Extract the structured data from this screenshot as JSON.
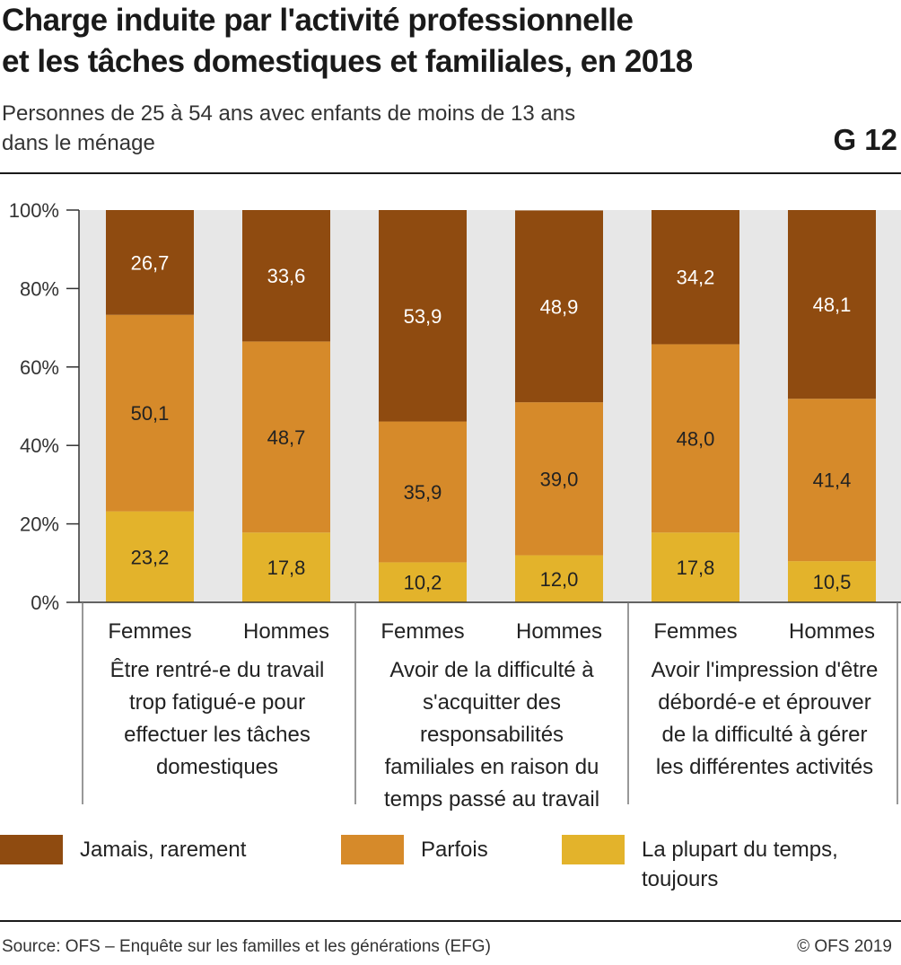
{
  "header": {
    "title_line1": "Charge induite par l'activité professionnelle",
    "title_line2": "et les tâches domestiques et familiales, en 2018",
    "subtitle_line1": "Personnes de 25 à 54 ans avec enfants de moins de 13 ans",
    "subtitle_line2": "dans le ménage",
    "figure_code": "G 12"
  },
  "chart_data": {
    "type": "bar",
    "stacked": true,
    "ylim": [
      0,
      100
    ],
    "yticks": [
      "0%",
      "20%",
      "40%",
      "60%",
      "80%",
      "100%"
    ],
    "grid": false,
    "legend_position": "bottom",
    "bars": [
      "Femmes",
      "Hommes",
      "Femmes",
      "Hommes",
      "Femmes",
      "Hommes"
    ],
    "groups": [
      {
        "lines": [
          "Être rentré-e du travail",
          "trop fatigué-e pour",
          "effectuer les tâches",
          "domestiques"
        ]
      },
      {
        "lines": [
          "Avoir de la difficulté à",
          "s'acquitter des",
          "responsabilités",
          "familiales en raison du",
          "temps passé au travail"
        ]
      },
      {
        "lines": [
          "Avoir l'impression d'être",
          "débordé-e et éprouver",
          "de la difficulté à gérer",
          "les différentes activités"
        ]
      }
    ],
    "series": [
      {
        "name_lines": [
          "La plupart du temps,",
          "toujours"
        ],
        "color": "#e3b32b",
        "values": [
          23.2,
          17.8,
          10.2,
          12.0,
          17.8,
          10.5
        ],
        "labels": [
          "23,2",
          "17,8",
          "10,2",
          "12,0",
          "17,8",
          "10,5"
        ]
      },
      {
        "name_lines": [
          "Parfois"
        ],
        "color": "#d68a2a",
        "values": [
          50.1,
          48.7,
          35.9,
          39.0,
          48.0,
          41.4
        ],
        "labels": [
          "50,1",
          "48,7",
          "35,9",
          "39,0",
          "48,0",
          "41,4"
        ]
      },
      {
        "name_lines": [
          "Jamais, rarement"
        ],
        "color": "#8f4b10",
        "values": [
          26.7,
          33.6,
          53.9,
          48.9,
          34.2,
          48.1
        ],
        "labels": [
          "26,7",
          "33,6",
          "53,9",
          "48,9",
          "34,2",
          "48,1"
        ]
      }
    ]
  },
  "footer": {
    "source": "Source: OFS – Enquête sur les familles et les générations (EFG)",
    "copyright": "© OFS 2019"
  }
}
